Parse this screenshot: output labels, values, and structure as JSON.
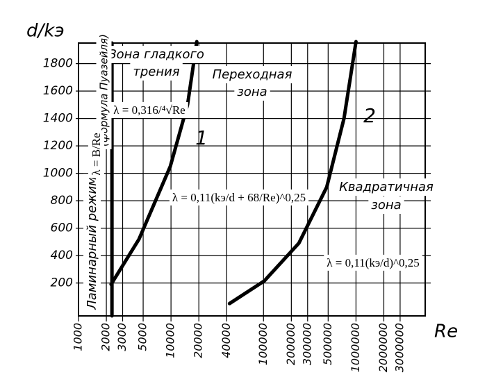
{
  "chart_data": {
    "type": "line",
    "y_label": "d/kэ",
    "x_label": "Re",
    "xlog": true,
    "xlim": [
      1000,
      5600000
    ],
    "xticks": [
      1000,
      2000,
      3000,
      5000,
      10000,
      20000,
      40000,
      100000,
      200000,
      300000,
      500000,
      1000000,
      2000000,
      3000000
    ],
    "ylim": [
      -40,
      1950
    ],
    "yticks": [
      200,
      400,
      600,
      800,
      1000,
      1200,
      1400,
      1600,
      1800
    ],
    "grid": true,
    "series": [
      {
        "color": "#000000",
        "x": [
          2300,
          2300
        ],
        "values": [
          -40,
          1950
        ]
      },
      {
        "label": "1",
        "color": "#000000",
        "x": [
          2250,
          4510,
          9820,
          15100,
          19000
        ],
        "values": [
          190,
          520,
          1050,
          1500,
          1960
        ]
      },
      {
        "label": "2",
        "color": "#000000",
        "x": [
          42900,
          102000,
          241000,
          483000,
          742000,
          1000000
        ],
        "values": [
          50,
          215,
          490,
          900,
          1400,
          1960
        ]
      }
    ],
    "annotations": [
      "Зона гладкого",
      "трения",
      "Переходная",
      "зона",
      "Квадратичная",
      "зона",
      "Ламинарный режим",
      "(формула Пуазейля)",
      "λ = B/Re",
      "λ = 0,316/⁴√Re",
      "λ = 0,11(kэ/d + 68/Re)^0,25",
      "λ = 0,11(kэ/d)^0,25"
    ]
  }
}
